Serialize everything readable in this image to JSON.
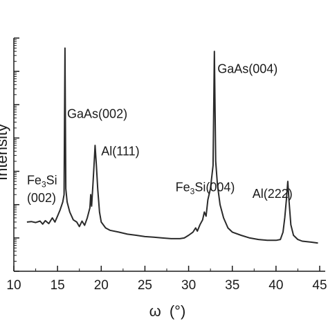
{
  "chart_data": {
    "type": "line",
    "ylabel": "Intensity",
    "xlabel_symbol": "ω",
    "xlabel_unit": "(°)",
    "xlim": [
      10,
      45
    ],
    "x_ticks": [
      "10",
      "15",
      "20",
      "25",
      "30",
      "35",
      "40",
      "45"
    ],
    "y_scale": "log",
    "ylim": [
      1,
      10000000
    ],
    "grid": false,
    "legend": "none",
    "line_color": "#2a2a2a",
    "annotations": [
      {
        "id": "fe3si-002-a",
        "text_main": "Fe",
        "text_sub": "3",
        "text_tail": "Si",
        "x": 11.5,
        "y": 400
      },
      {
        "id": "fe3si-002-b",
        "text_main": "(002)",
        "x": 11.5,
        "y": 120
      },
      {
        "id": "gaas-002",
        "text_main": "GaAs(002)",
        "x": 16.1,
        "y": 40000
      },
      {
        "id": "al-111",
        "text_main": "Al(111)",
        "x": 20.0,
        "y": 3000
      },
      {
        "id": "fe3si-004",
        "text_main": "Fe",
        "text_sub": "3",
        "text_tail": "Si(004)",
        "x": 28.5,
        "y": 250
      },
      {
        "id": "gaas-004",
        "text_main": "GaAs(004)",
        "x": 33.3,
        "y": 900000
      },
      {
        "id": "al-222",
        "text_main": "Al(222)",
        "x": 37.3,
        "y": 160
      }
    ],
    "series": [
      {
        "points": [
          [
            11.5,
            30
          ],
          [
            12.0,
            31
          ],
          [
            12.5,
            29
          ],
          [
            13.0,
            32
          ],
          [
            13.3,
            26
          ],
          [
            13.6,
            33
          ],
          [
            14.0,
            27
          ],
          [
            14.4,
            40
          ],
          [
            14.7,
            30
          ],
          [
            15.0,
            45
          ],
          [
            15.3,
            70
          ],
          [
            15.6,
            120
          ],
          [
            15.75,
            200
          ],
          [
            15.85,
            5000000
          ],
          [
            15.95,
            300
          ],
          [
            16.1,
            120
          ],
          [
            16.4,
            60
          ],
          [
            16.8,
            35
          ],
          [
            17.2,
            30
          ],
          [
            17.5,
            22
          ],
          [
            17.8,
            32
          ],
          [
            18.1,
            24
          ],
          [
            18.4,
            40
          ],
          [
            18.7,
            80
          ],
          [
            18.8,
            200
          ],
          [
            18.9,
            90
          ],
          [
            19.05,
            400
          ],
          [
            19.2,
            2000
          ],
          [
            19.3,
            6000
          ],
          [
            19.45,
            1500
          ],
          [
            19.6,
            300
          ],
          [
            19.8,
            60
          ],
          [
            20.0,
            30
          ],
          [
            20.5,
            20
          ],
          [
            21.0,
            17
          ],
          [
            22.0,
            15
          ],
          [
            23.0,
            13
          ],
          [
            24.0,
            12
          ],
          [
            25.0,
            11
          ],
          [
            26.0,
            10.5
          ],
          [
            27.0,
            10
          ],
          [
            28.0,
            9.5
          ],
          [
            29.0,
            9.5
          ],
          [
            29.5,
            10
          ],
          [
            30.0,
            12
          ],
          [
            30.5,
            15
          ],
          [
            30.8,
            20
          ],
          [
            31.0,
            16
          ],
          [
            31.3,
            25
          ],
          [
            31.6,
            35
          ],
          [
            31.8,
            60
          ],
          [
            32.0,
            45
          ],
          [
            32.2,
            140
          ],
          [
            32.5,
            300
          ],
          [
            32.8,
            1500
          ],
          [
            32.95,
            4000000
          ],
          [
            33.1,
            2000
          ],
          [
            33.3,
            400
          ],
          [
            33.6,
            100
          ],
          [
            34.0,
            40
          ],
          [
            34.5,
            20
          ],
          [
            35.0,
            15
          ],
          [
            36.0,
            12
          ],
          [
            37.0,
            10
          ],
          [
            38.0,
            9
          ],
          [
            39.0,
            8.5
          ],
          [
            40.0,
            8.5
          ],
          [
            40.5,
            9
          ],
          [
            40.8,
            15
          ],
          [
            41.0,
            40
          ],
          [
            41.2,
            150
          ],
          [
            41.35,
            500
          ],
          [
            41.5,
            120
          ],
          [
            41.7,
            25
          ],
          [
            42.0,
            12
          ],
          [
            42.5,
            9
          ],
          [
            43.0,
            8
          ],
          [
            44.0,
            7.5
          ],
          [
            44.8,
            7
          ]
        ]
      }
    ]
  }
}
